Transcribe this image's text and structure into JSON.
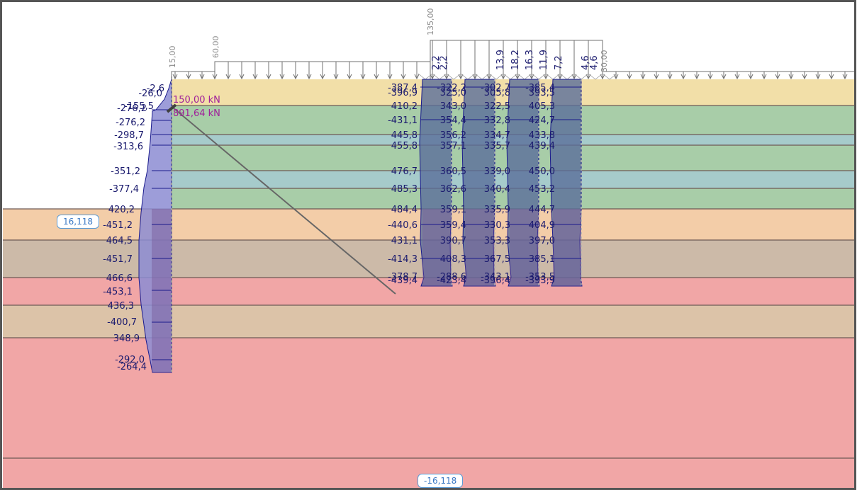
{
  "app": {
    "view": "Sheet pile wall & pile group — internal forces diagram"
  },
  "colors": {
    "frame": "#555555",
    "layer_line": "#6e5a55",
    "load_line": "#707070",
    "diagram_fill_upper": "#8c8cd2",
    "diagram_fill_lower": "#7a5a9a",
    "diagram_outline": "#1a1a8c",
    "value_text": "#1a1a6e",
    "anchor_text": "#a0209a",
    "badge_border": "#5b9bd5",
    "badge_text": "#3a78c4"
  },
  "soil_layers": [
    {
      "name": "layer-1",
      "color": "#f2dfa8"
    },
    {
      "name": "layer-2",
      "color": "#a8cda8"
    },
    {
      "name": "layer-3",
      "color": "#a6cbcb"
    },
    {
      "name": "layer-4",
      "color": "#a8cda8"
    },
    {
      "name": "layer-5",
      "color": "#a6cbcb"
    },
    {
      "name": "layer-6",
      "color": "#a8cda8"
    },
    {
      "name": "layer-7",
      "color": "#f3cda8"
    },
    {
      "name": "layer-8",
      "color": "#ccbaa8"
    },
    {
      "name": "layer-9",
      "color": "#f1a6a6"
    },
    {
      "name": "layer-10",
      "color": "#dcc3a8"
    },
    {
      "name": "layer-11",
      "color": "#f1a6a6"
    },
    {
      "name": "layer-12",
      "color": "#f1a6a6"
    }
  ],
  "surcharge_loads": [
    {
      "label": "15,00",
      "kind": "uniform"
    },
    {
      "label": "60,00",
      "kind": "strip"
    },
    {
      "label": "135,00",
      "kind": "strip"
    },
    {
      "label": "30,00",
      "kind": "uniform"
    }
  ],
  "anchor": {
    "force_label": "150,00 kN",
    "capacity_label": "891,64 kN"
  },
  "levels": {
    "top_badge": "16,118",
    "bottom_badge": "-16,118"
  },
  "wall_values": [
    "-2,6",
    "-26,0",
    "-276,2",
    "-155,5",
    "-276,2",
    "-298,7",
    "-313,6",
    "-351,2",
    "-377,4",
    "420,2",
    "-451,2",
    "464,5",
    "-451,7",
    "466,6",
    "-453,1",
    "436,3",
    "-400,7",
    "348,9",
    "-292,0",
    "-264,4"
  ],
  "pile_top_values": [
    "2,2",
    "2,2",
    "13,9",
    "18,2",
    "16,3",
    "11,9",
    "7,2",
    "4,6",
    "4,6"
  ],
  "piles": [
    {
      "name": "pile-1",
      "values": [
        "-387,4",
        "-396,9",
        "410,2",
        "-431,1",
        "445,8",
        "455,8",
        "476,7",
        "485,3",
        "484,4",
        "-440,6",
        "431,1",
        "-414,3",
        "-378,7",
        "-439,4"
      ]
    },
    {
      "name": "pile-2",
      "values": [
        "-322,2",
        "325,0",
        "343,0",
        "354,4",
        "356,2",
        "357,1",
        "360,5",
        "362,6",
        "359,1",
        "359,4",
        "390,7",
        "408,3",
        "-288,6",
        "-423,4"
      ]
    },
    {
      "name": "pile-3",
      "values": [
        "-302,7",
        "305,8",
        "322,5",
        "332,8",
        "334,7",
        "335,7",
        "339,0",
        "340,4",
        "335,9",
        "330,3",
        "353,3",
        "367,5",
        "-343,1",
        "-396,4"
      ]
    },
    {
      "name": "pile-4",
      "values": [
        "-385,4",
        "393,5",
        "405,3",
        "424,7",
        "433,8",
        "439,4",
        "450,0",
        "453,2",
        "444,7",
        "404,9",
        "397,0",
        "385,1",
        "-353,5",
        "-393,9"
      ]
    }
  ]
}
